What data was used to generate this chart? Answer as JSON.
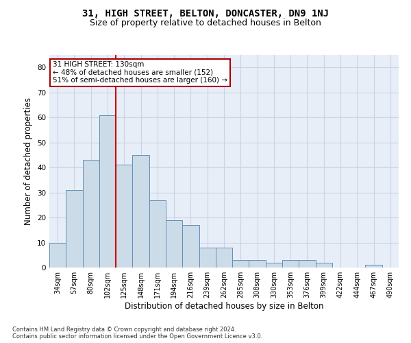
{
  "title": "31, HIGH STREET, BELTON, DONCASTER, DN9 1NJ",
  "subtitle": "Size of property relative to detached houses in Belton",
  "xlabel": "Distribution of detached houses by size in Belton",
  "ylabel": "Number of detached properties",
  "categories": [
    "34sqm",
    "57sqm",
    "80sqm",
    "102sqm",
    "125sqm",
    "148sqm",
    "171sqm",
    "194sqm",
    "216sqm",
    "239sqm",
    "262sqm",
    "285sqm",
    "308sqm",
    "330sqm",
    "353sqm",
    "376sqm",
    "399sqm",
    "422sqm",
    "444sqm",
    "467sqm",
    "490sqm"
  ],
  "values": [
    10,
    31,
    43,
    61,
    41,
    45,
    27,
    19,
    17,
    8,
    8,
    3,
    3,
    2,
    3,
    3,
    2,
    0,
    0,
    1,
    0
  ],
  "bar_color": "#ccdbe8",
  "bar_edge_color": "#6090b8",
  "bar_width": 1.0,
  "ylim": [
    0,
    85
  ],
  "yticks": [
    0,
    10,
    20,
    30,
    40,
    50,
    60,
    70,
    80
  ],
  "red_line_x": 3.5,
  "annotation_text": "31 HIGH STREET: 130sqm\n← 48% of detached houses are smaller (152)\n51% of semi-detached houses are larger (160) →",
  "annotation_box_facecolor": "#ffffff",
  "annotation_box_edgecolor": "#aa0000",
  "footnote": "Contains HM Land Registry data © Crown copyright and database right 2024.\nContains public sector information licensed under the Open Government Licence v3.0.",
  "grid_color": "#c8d4e4",
  "plot_background": "#e8eef8",
  "title_fontsize": 10,
  "subtitle_fontsize": 9,
  "tick_fontsize": 7,
  "ylabel_fontsize": 8.5,
  "xlabel_fontsize": 8.5,
  "annotation_fontsize": 7.5
}
